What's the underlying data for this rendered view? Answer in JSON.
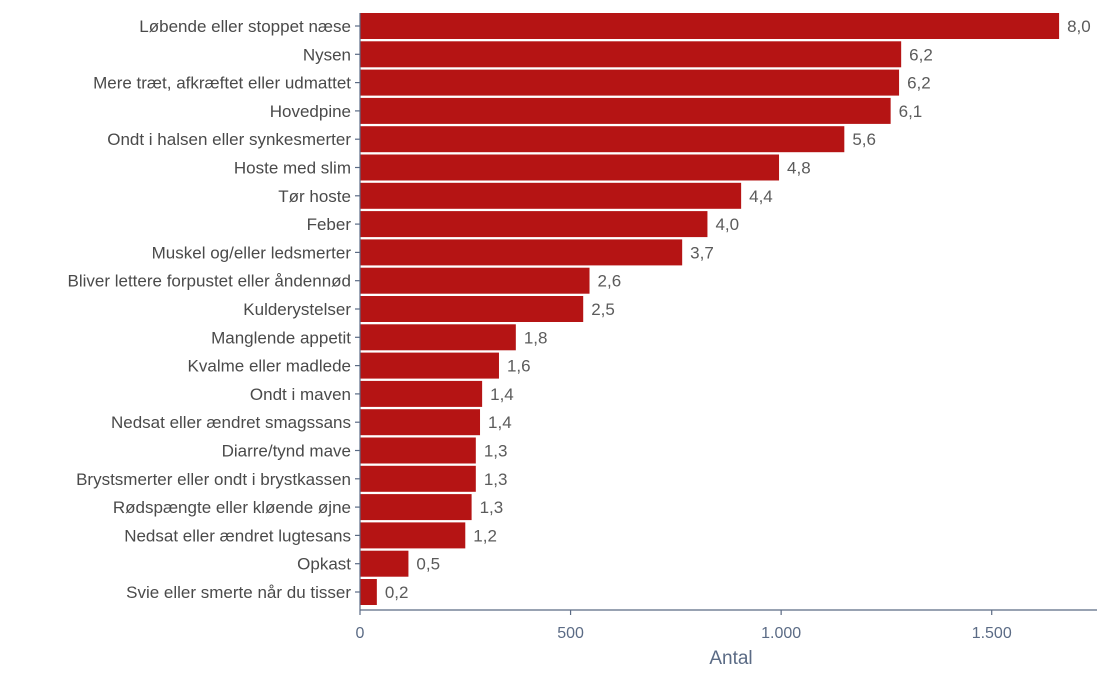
{
  "colors": {
    "bar": "#b51414",
    "axis": "#5b6b85",
    "text": "#4a4a4a"
  },
  "chart_data": {
    "type": "bar",
    "orientation": "horizontal",
    "categories": [
      "Løbende eller stoppet næse",
      "Nysen",
      "Mere træt, afkræftet eller udmattet",
      "Hovedpine",
      "Ondt i halsen eller synkesmerter",
      "Hoste med slim",
      "Tør hoste",
      "Feber",
      "Muskel og/eller ledsmerter",
      "Bliver lettere forpustet eller åndennød",
      "Kulderystelser",
      "Manglende appetit",
      "Kvalme eller madlede",
      "Ondt i maven",
      "Nedsat eller ændret smagssans",
      "Diarre/tynd mave",
      "Brystsmerter eller ondt i brystkassen",
      "Rødspængte eller kløende øjne",
      "Nedsat eller ændret lugtesans",
      "Opkast",
      "Svie eller smerte når du tisser"
    ],
    "values": [
      1660,
      1285,
      1280,
      1260,
      1150,
      995,
      905,
      825,
      765,
      545,
      530,
      370,
      330,
      290,
      285,
      275,
      275,
      265,
      250,
      115,
      40
    ],
    "data_labels": [
      "8,0",
      "6,2",
      "6,2",
      "6,1",
      "5,6",
      "4,8",
      "4,4",
      "4,0",
      "3,7",
      "2,6",
      "2,5",
      "1,8",
      "1,6",
      "1,4",
      "1,4",
      "1,3",
      "1,3",
      "1,3",
      "1,2",
      "0,5",
      "0,2"
    ],
    "xlabel": "Antal",
    "ylabel": "",
    "xlim": [
      0,
      1750
    ],
    "x_ticks": [
      0,
      500,
      1000,
      1500
    ],
    "x_tick_labels": [
      "0",
      "500",
      "1.000",
      "1.500"
    ],
    "grid": false,
    "legend": "none"
  }
}
